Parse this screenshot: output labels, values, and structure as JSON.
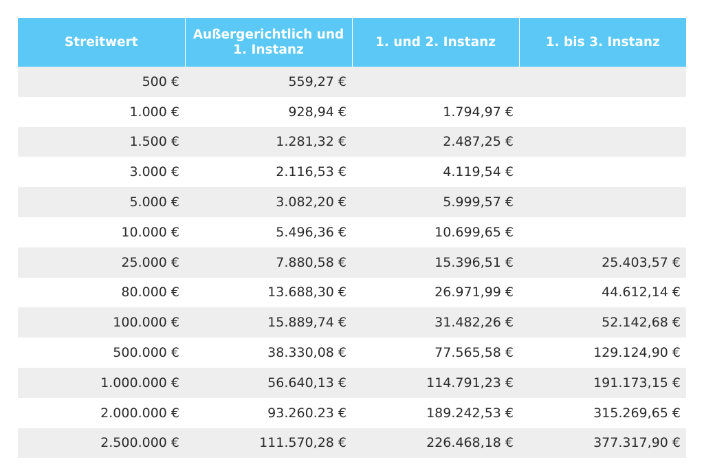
{
  "table": {
    "headers": [
      "Streitwert",
      "Außergerichtlich und 1. Instanz",
      "1. und 2. Instanz",
      "1. bis 3. Instanz"
    ],
    "rows": [
      [
        "500 €",
        "559,27 €",
        "",
        ""
      ],
      [
        "1.000 €",
        "928,94 €",
        "1.794,97 €",
        ""
      ],
      [
        "1.500 €",
        "1.281,32 €",
        "2.487,25 €",
        ""
      ],
      [
        "3.000 €",
        "2.116,53 €",
        "4.119,54 €",
        ""
      ],
      [
        "5.000 €",
        "3.082,20 €",
        "5.999,57 €",
        ""
      ],
      [
        "10.000 €",
        "5.496,36 €",
        "10.699,65 €",
        ""
      ],
      [
        "25.000 €",
        "7.880,58 €",
        "15.396,51 €",
        "25.403,57 €"
      ],
      [
        "80.000 €",
        "13.688,30 €",
        "26.971,99 €",
        "44.612,14 €"
      ],
      [
        "100.000 €",
        "15.889,74 €",
        "31.482,26 €",
        "52.142,68 €"
      ],
      [
        "500.000 €",
        "38.330,08 €",
        "77.565,58 €",
        "129.124,90 €"
      ],
      [
        "1.000.000 €",
        "56.640,13 €",
        "114.791,23 €",
        "191.173,15 €"
      ],
      [
        "2.000.000 €",
        "93.260.23 €",
        "189.242,53 €",
        "315.269,65 €"
      ],
      [
        "2.500.000 €",
        "111.570,28 €",
        "226.468,18 €",
        "377.317,90 €"
      ]
    ]
  },
  "colors": {
    "header_bg": "#5bc8f5",
    "header_text": "#ffffff",
    "row_odd": "#eeeeef",
    "row_even": "#ffffff",
    "cell_text": "#2a2a2a"
  }
}
